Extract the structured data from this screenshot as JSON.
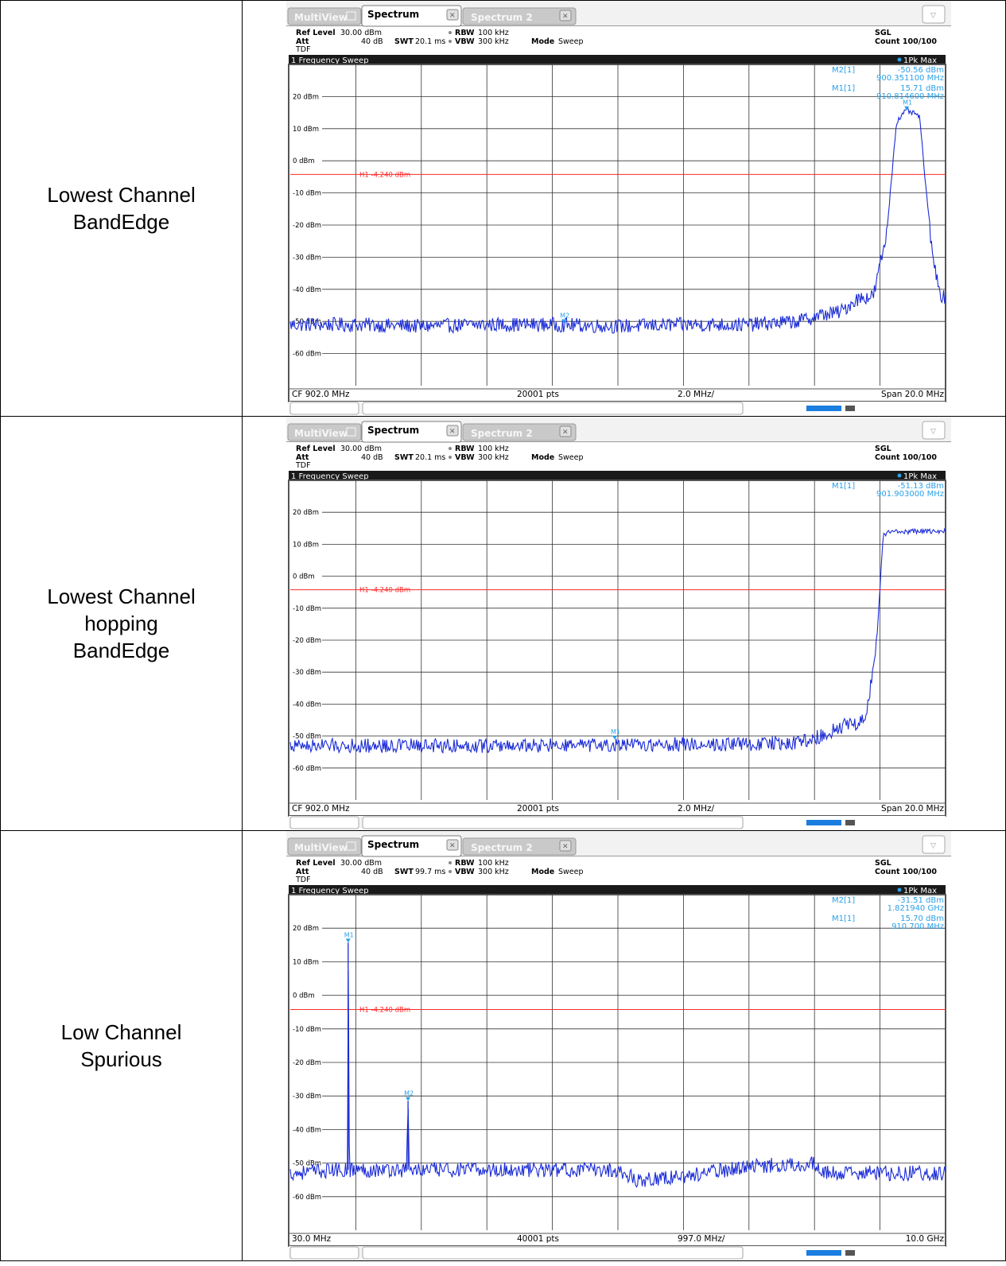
{
  "colors": {
    "trace": "#1a2bd6",
    "marker": "#2aa0e8",
    "threshold": "#ff2a2a",
    "header_bar": "#1a1a1a"
  },
  "panels": [
    {
      "label_lines": [
        "Lowest Channel",
        "BandEdge"
      ],
      "tabs": {
        "multiview": "MultiView",
        "spectrum": "Spectrum",
        "spectrum2": "Spectrum 2"
      },
      "settings": {
        "ref_level_label": "Ref Level",
        "ref_level": "30.00 dBm",
        "att_label": "Att",
        "att": "40 dB",
        "swt_label": "SWT",
        "swt": "20.1 ms",
        "rbw_label": "RBW",
        "rbw": "100 kHz",
        "vbw_label": "VBW",
        "vbw": "300 kHz",
        "mode_label": "Mode",
        "mode": "Sweep",
        "tdf": "TDF",
        "sgl": "SGL",
        "count": "Count 100/100"
      },
      "sweep_title": "1 Frequency Sweep",
      "trace_label": "1Pk Max",
      "threshold_label": "H1  -4.240 dBm",
      "marker_table": [
        {
          "name": "M2[1]",
          "level": "-50.56 dBm",
          "freq": "900.351100 MHz"
        },
        {
          "name": "M1[1]",
          "level": "15.71 dBm",
          "freq": "910.814600 MHz"
        }
      ],
      "footer": {
        "left": "CF 902.0 MHz",
        "center": "20001 pts",
        "div": "2.0 MHz/",
        "right": "Span 20.0 MHz"
      },
      "chart_data": {
        "type": "line",
        "x_unit": "MHz",
        "xlim": [
          892.0,
          912.0
        ],
        "ylim": [
          -70,
          30
        ],
        "y_ticks": [
          20,
          10,
          0,
          -10,
          -20,
          -30,
          -40,
          -50,
          -60
        ],
        "y_tick_labels": [
          "20 dBm",
          "10 dBm",
          "0 dBm",
          "-10 dBm",
          "-20 dBm",
          "-30 dBm",
          "-40 dBm",
          "-50 dBm",
          "-60 dBm"
        ],
        "threshold": -4.24,
        "grid": true,
        "series": [
          {
            "name": "1Pk Max",
            "x": [
              892.0,
              894.0,
              896.0,
              898.0,
              900.0,
              902.0,
              904.0,
              906.0,
              907.5,
              908.2,
              908.8,
              909.3,
              909.8,
              910.2,
              910.5,
              910.8,
              911.2,
              911.6,
              911.9,
              912.0
            ],
            "y": [
              -51,
              -51,
              -51.5,
              -51,
              -51,
              -51.5,
              -51,
              -51,
              -50,
              -48,
              -47,
              -43,
              -42,
              -23,
              12,
              15.71,
              14,
              -30,
              -43,
              -42
            ]
          }
        ],
        "markers": [
          {
            "name": "M2",
            "x": 900.3511,
            "y": -50.56
          },
          {
            "name": "M1",
            "x": 910.8146,
            "y": 15.71
          }
        ]
      }
    },
    {
      "label_lines": [
        "Lowest Channel",
        "hopping",
        "BandEdge"
      ],
      "tabs": {
        "multiview": "MultiView",
        "spectrum": "Spectrum",
        "spectrum2": "Spectrum 2"
      },
      "settings": {
        "ref_level_label": "Ref Level",
        "ref_level": "30.00 dBm",
        "att_label": "Att",
        "att": "40 dB",
        "swt_label": "SWT",
        "swt": "20.1 ms",
        "rbw_label": "RBW",
        "rbw": "100 kHz",
        "vbw_label": "VBW",
        "vbw": "300 kHz",
        "mode_label": "Mode",
        "mode": "Sweep",
        "tdf": "TDF",
        "sgl": "SGL",
        "count": "Count 100/100"
      },
      "sweep_title": "1 Frequency Sweep",
      "trace_label": "1Pk Max",
      "threshold_label": "H1  -4.240 dBm",
      "marker_table": [
        {
          "name": "M1[1]",
          "level": "-51.13 dBm",
          "freq": "901.903000 MHz"
        }
      ],
      "footer": {
        "left": "CF 902.0 MHz",
        "center": "20001 pts",
        "div": "2.0 MHz/",
        "right": "Span 20.0 MHz"
      },
      "chart_data": {
        "type": "line",
        "x_unit": "MHz",
        "xlim": [
          892.0,
          912.0
        ],
        "ylim": [
          -70,
          30
        ],
        "y_ticks": [
          20,
          10,
          0,
          -10,
          -20,
          -30,
          -40,
          -50,
          -60
        ],
        "y_tick_labels": [
          "20 dBm",
          "10 dBm",
          "0 dBm",
          "-10 dBm",
          "-20 dBm",
          "-30 dBm",
          "-40 dBm",
          "-50 dBm",
          "-60 dBm"
        ],
        "threshold": -4.24,
        "grid": true,
        "series": [
          {
            "name": "1Pk Max",
            "x": [
              892.0,
              894.0,
              896.0,
              898.0,
              900.0,
              902.0,
              904.0,
              906.0,
              907.5,
              908.2,
              908.8,
              909.3,
              909.6,
              909.9,
              910.1,
              910.4,
              911.0,
              911.5,
              912.0
            ],
            "y": [
              -53,
              -53,
              -53,
              -53,
              -53,
              -53,
              -52.5,
              -52.5,
              -52,
              -50,
              -47,
              -46,
              -43,
              -20,
              13,
              14,
              14,
              14,
              14
            ]
          }
        ],
        "markers": [
          {
            "name": "M1",
            "x": 901.903,
            "y": -51.13
          }
        ]
      }
    },
    {
      "label_lines": [
        "Low Channel",
        "Spurious"
      ],
      "tabs": {
        "multiview": "MultiView",
        "spectrum": "Spectrum",
        "spectrum2": "Spectrum 2"
      },
      "settings": {
        "ref_level_label": "Ref Level",
        "ref_level": "30.00 dBm",
        "att_label": "Att",
        "att": "40 dB",
        "swt_label": "SWT",
        "swt": "99.7 ms",
        "rbw_label": "RBW",
        "rbw": "100 kHz",
        "vbw_label": "VBW",
        "vbw": "300 kHz",
        "mode_label": "Mode",
        "mode": "Sweep",
        "tdf": "TDF",
        "sgl": "SGL",
        "count": "Count 100/100"
      },
      "sweep_title": "1 Frequency Sweep",
      "trace_label": "1Pk Max",
      "threshold_label": "H1  -4.240 dBm",
      "marker_table": [
        {
          "name": "M2[1]",
          "level": "-31.51 dBm",
          "freq": "1.821940 GHz"
        },
        {
          "name": "M1[1]",
          "level": "15.70 dBm",
          "freq": "910.700 MHz"
        }
      ],
      "footer": {
        "left": "30.0 MHz",
        "center": "40001 pts",
        "div": "997.0 MHz/",
        "right": "10.0 GHz"
      },
      "chart_data": {
        "type": "line",
        "x_unit": "MHz",
        "xlim": [
          30.0,
          10000.0
        ],
        "ylim": [
          -70,
          30
        ],
        "y_ticks": [
          20,
          10,
          0,
          -10,
          -20,
          -30,
          -40,
          -50,
          -60
        ],
        "y_tick_labels": [
          "20 dBm",
          "10 dBm",
          "0 dBm",
          "-10 dBm",
          "-20 dBm",
          "-30 dBm",
          "-40 dBm",
          "-50 dBm",
          "-60 dBm"
        ],
        "threshold": -4.24,
        "grid": true,
        "series": [
          {
            "name": "1Pk Max",
            "x": [
              30,
              800,
              900,
              910.7,
              930,
              1800,
              1821.94,
              1840,
              3000,
              4000,
              5000,
              5300,
              6000,
              7000,
              8000,
              8100,
              9000,
              10000
            ],
            "y": [
              -53,
              -52,
              -52,
              15.7,
              -52,
              -52,
              -31.51,
              -52,
              -52,
              -52,
              -52,
              -55,
              -54,
              -51,
              -50,
              -53,
              -53,
              -53
            ]
          }
        ],
        "markers": [
          {
            "name": "M1",
            "x": 910.7,
            "y": 15.7
          },
          {
            "name": "M2",
            "x": 1821.94,
            "y": -31.51
          }
        ]
      }
    }
  ]
}
